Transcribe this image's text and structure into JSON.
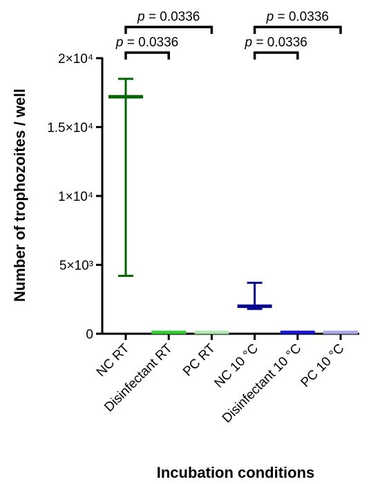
{
  "chart_data": {
    "type": "scatter",
    "xlabel": "Incubation conditions",
    "ylabel": "Number of trophozoites / well",
    "ylim": [
      0,
      20000
    ],
    "yticks": [
      {
        "value": 0,
        "label": "0"
      },
      {
        "value": 5000,
        "label": "5×10³"
      },
      {
        "value": 10000,
        "label": "1×10⁴"
      },
      {
        "value": 15000,
        "label": "1.5×10⁴"
      },
      {
        "value": 20000,
        "label": "2×10⁴"
      }
    ],
    "categories": [
      "NC RT",
      "Disinfectant RT",
      "PC RT",
      "NC 10 °C",
      "Disinfectant 10 °C",
      "PC 10 °C"
    ],
    "groups": [
      {
        "name": "NC RT",
        "median": 17200,
        "low": 4200,
        "high": 18500,
        "color": "#006400"
      },
      {
        "name": "Disinfectant RT",
        "median": 0,
        "low": 0,
        "high": 0,
        "color": "#32CD32"
      },
      {
        "name": "PC RT",
        "median": 0,
        "low": 0,
        "high": 0,
        "color": "#B0E8B0"
      },
      {
        "name": "NC 10 °C",
        "median": 2000,
        "low": 1800,
        "high": 3700,
        "color": "#00008B"
      },
      {
        "name": "Disinfectant 10 °C",
        "median": 0,
        "low": 0,
        "high": 0,
        "color": "#1515D0"
      },
      {
        "name": "PC 10 °C",
        "median": 0,
        "low": 0,
        "high": 0,
        "color": "#A8A8E6"
      }
    ],
    "annotations": [
      {
        "from": 0,
        "to": 1,
        "level": 1,
        "p_italic": "p",
        "text": " = 0.0336"
      },
      {
        "from": 0,
        "to": 2,
        "level": 2,
        "p_italic": "p",
        "text": " = 0.0336"
      },
      {
        "from": 3,
        "to": 4,
        "level": 1,
        "p_italic": "p",
        "text": " = 0.0336"
      },
      {
        "from": 3,
        "to": 5,
        "level": 2,
        "p_italic": "p",
        "text": " = 0.0336"
      }
    ]
  }
}
